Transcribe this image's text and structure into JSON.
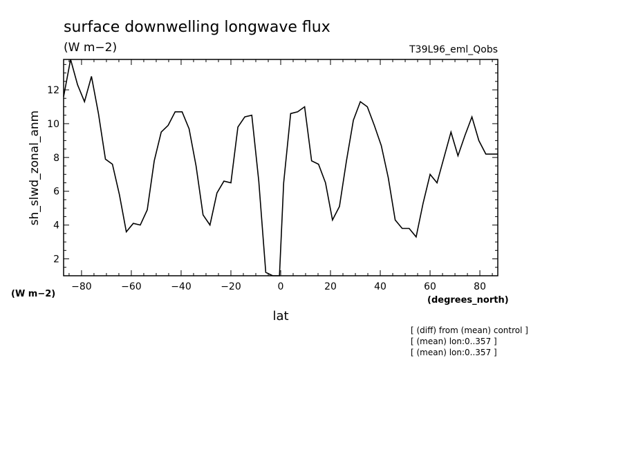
{
  "chart_data": {
    "type": "line",
    "title": "surface downwelling longwave flux",
    "units_label": "(W m−2)",
    "experiment_label": "T39L96_eml_Qobs",
    "ylabel": "sh_slwd_zonal_anm",
    "yunits_label": "(W m−2)",
    "xlabel": "lat",
    "xunits_label": "(degrees_north)",
    "xlim": [
      -87.2,
      87.2
    ],
    "ylim": [
      1,
      13.8
    ],
    "xticks": [
      -80,
      -60,
      -40,
      -20,
      0,
      20,
      40,
      60,
      80
    ],
    "xtick_labels": [
      "−80",
      "−60",
      "−40",
      "−20",
      "0",
      "20",
      "40",
      "60",
      "80"
    ],
    "yticks": [
      2,
      4,
      6,
      8,
      10,
      12
    ],
    "ytick_labels": [
      "2",
      "4",
      "6",
      "8",
      "10",
      "12"
    ],
    "notes": [
      "[ (diff) from (mean) control ]",
      "[ (mean) lon:0..357 ]",
      "[ (mean) lon:0..357 ]"
    ],
    "x": [
      -87.2,
      -84.4,
      -81.6,
      -78.8,
      -76.0,
      -73.2,
      -70.4,
      -67.6,
      -64.8,
      -62.0,
      -59.2,
      -56.4,
      -53.6,
      -50.8,
      -48.0,
      -45.2,
      -42.4,
      -39.6,
      -36.8,
      -34.0,
      -31.2,
      -28.4,
      -25.6,
      -22.8,
      -20.0,
      -17.2,
      -14.4,
      -11.6,
      -8.8,
      -6.0,
      -3.2,
      -0.5,
      1.2,
      4.0,
      6.8,
      9.6,
      12.4,
      15.2,
      18.0,
      20.8,
      23.6,
      26.4,
      29.2,
      32.0,
      34.8,
      37.6,
      40.4,
      43.2,
      46.0,
      48.8,
      51.6,
      54.4,
      57.2,
      60.0,
      62.8,
      65.6,
      68.4,
      71.2,
      74.0,
      76.8,
      79.6,
      82.4,
      85.2,
      87.2
    ],
    "series": [
      {
        "values": [
          11.6,
          13.8,
          12.3,
          11.3,
          12.8,
          10.6,
          7.9,
          7.6,
          5.8,
          3.6,
          4.1,
          4.0,
          4.9,
          7.8,
          9.5,
          9.9,
          10.7,
          10.7,
          9.7,
          7.5,
          4.6,
          4.0,
          5.9,
          6.6,
          6.5,
          9.8,
          10.4,
          10.5,
          6.6,
          1.2,
          1.0,
          1.0,
          6.5,
          10.6,
          10.7,
          11.0,
          7.8,
          7.6,
          6.5,
          4.3,
          5.1,
          7.8,
          10.2,
          11.3,
          11.0,
          9.9,
          8.7,
          6.8,
          4.3,
          3.8,
          3.8,
          3.3,
          5.3,
          7.0,
          6.5,
          8.0,
          9.5,
          8.1,
          9.3,
          10.4,
          9.0,
          8.2,
          8.2,
          8.2
        ]
      }
    ]
  }
}
